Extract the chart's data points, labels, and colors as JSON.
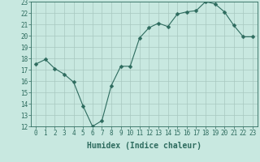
{
  "x": [
    0,
    1,
    2,
    3,
    4,
    5,
    6,
    7,
    8,
    9,
    10,
    11,
    12,
    13,
    14,
    15,
    16,
    17,
    18,
    19,
    20,
    21,
    22,
    23
  ],
  "y": [
    17.5,
    17.9,
    17.1,
    16.6,
    15.9,
    13.8,
    12.0,
    12.5,
    15.6,
    17.3,
    17.3,
    19.8,
    20.7,
    21.1,
    20.8,
    21.9,
    22.1,
    22.2,
    23.0,
    22.8,
    22.1,
    20.9,
    19.9,
    19.9
  ],
  "line_color": "#2d6b5e",
  "marker": "D",
  "marker_size": 2.5,
  "bg_color": "#c8e8e0",
  "grid_color": "#a8c8c0",
  "xlabel": "Humidex (Indice chaleur)",
  "xlim": [
    -0.5,
    23.5
  ],
  "ylim": [
    12,
    23
  ],
  "yticks": [
    12,
    13,
    14,
    15,
    16,
    17,
    18,
    19,
    20,
    21,
    22,
    23
  ],
  "xticks": [
    0,
    1,
    2,
    3,
    4,
    5,
    6,
    7,
    8,
    9,
    10,
    11,
    12,
    13,
    14,
    15,
    16,
    17,
    18,
    19,
    20,
    21,
    22,
    23
  ],
  "axis_fontsize": 6.5,
  "tick_fontsize": 5.5,
  "xlabel_fontsize": 7
}
